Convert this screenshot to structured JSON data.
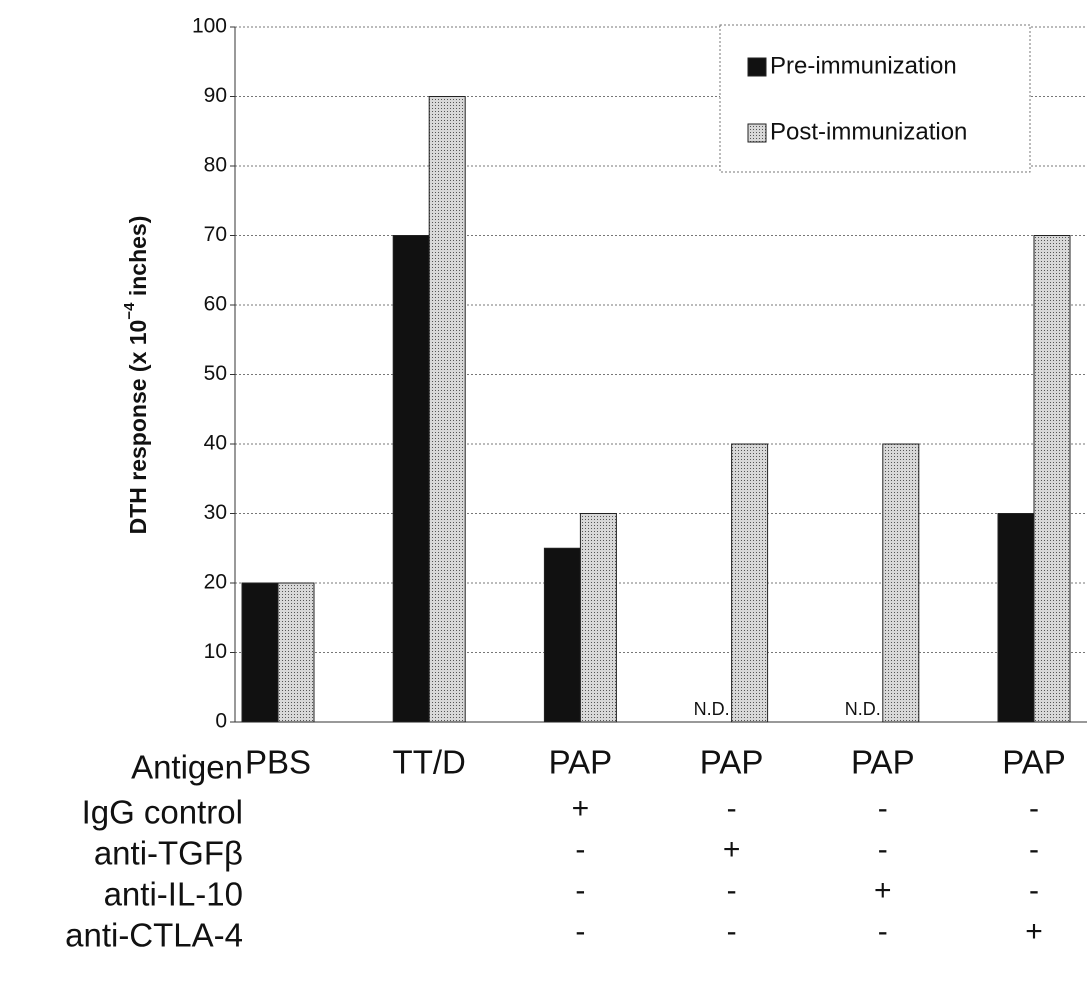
{
  "chart_data": {
    "type": "bar",
    "y_label": {
      "text": "DTH response (x 10",
      "superscript": "−4",
      "suffix": " inches)"
    },
    "category_label": "Antigen",
    "categories": [
      "PBS",
      "TT/D",
      "PAP",
      "PAP",
      "PAP",
      "PAP"
    ],
    "series": [
      {
        "name": "Pre-immunization",
        "color": "#111111",
        "values": [
          20,
          70,
          25,
          null,
          null,
          30
        ],
        "value_labels": [
          null,
          null,
          null,
          "N.D.",
          "N.D.",
          null
        ]
      },
      {
        "name": "Post-immunization",
        "color": "#c4c4c4",
        "values": [
          20,
          90,
          30,
          40,
          40,
          70
        ]
      }
    ],
    "treatment_rows": [
      {
        "name": "IgG control",
        "values": [
          null,
          null,
          "+",
          "-",
          "-",
          "-"
        ]
      },
      {
        "name": "anti-TGFβ",
        "values": [
          null,
          null,
          "-",
          "+",
          "-",
          "-"
        ]
      },
      {
        "name": "anti-IL-10",
        "values": [
          null,
          null,
          "-",
          "-",
          "+",
          "-"
        ]
      },
      {
        "name": "anti-CTLA-4",
        "values": [
          null,
          null,
          "-",
          "-",
          "-",
          "+"
        ]
      }
    ],
    "ylim": [
      0,
      100
    ],
    "yticks": [
      0,
      10,
      20,
      30,
      40,
      50,
      60,
      70,
      80,
      90,
      100
    ],
    "grid": true,
    "legend": "upper right"
  }
}
